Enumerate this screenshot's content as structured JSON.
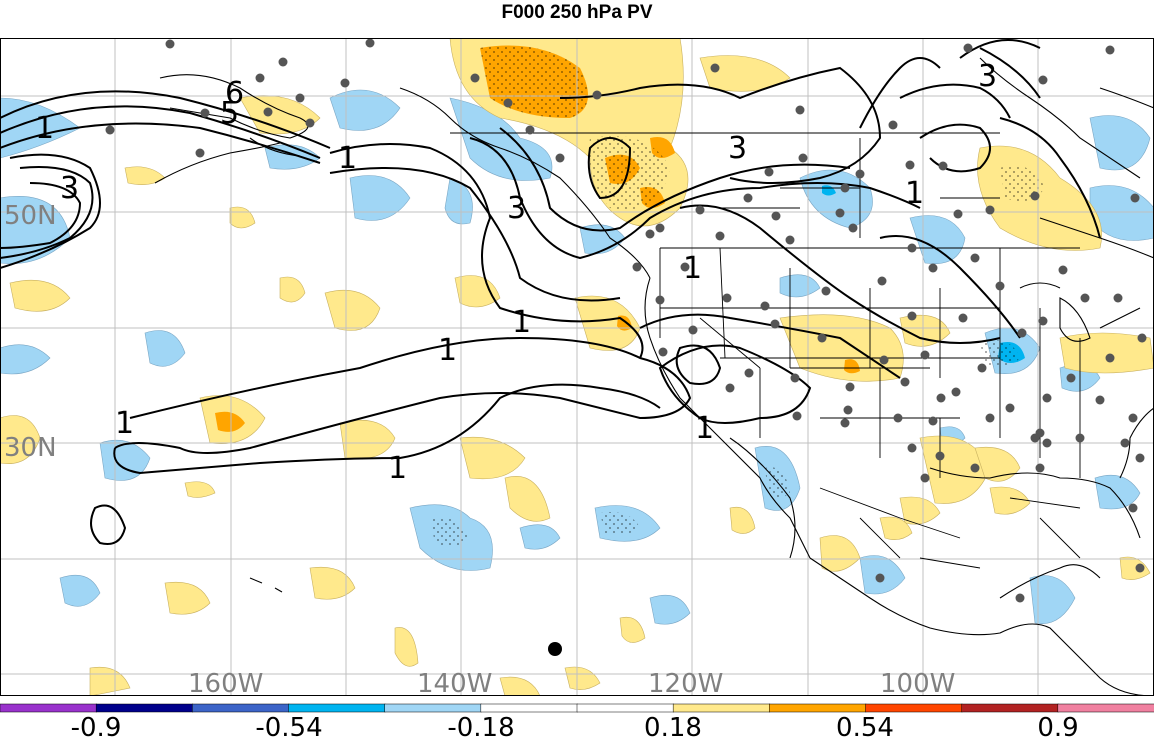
{
  "title": "F000 250 hPa PV",
  "lat_labels": [
    {
      "text": "50N",
      "lat": 50
    },
    {
      "text": "30N",
      "lat": 30
    }
  ],
  "lon_labels": [
    {
      "text": "160W",
      "lon": -160
    },
    {
      "text": "140W",
      "lon": -140
    },
    {
      "text": "120W",
      "lon": -120
    },
    {
      "text": "100W",
      "lon": -100
    }
  ],
  "contour_labels": [
    "6",
    "5",
    "1",
    "3",
    "3",
    "1",
    "3",
    "1",
    "1",
    "1",
    "1",
    "1",
    "1",
    "3"
  ],
  "colorbar": {
    "colors": [
      "#9932cc",
      "#00008b",
      "#3c64c8",
      "#00b4f0",
      "#a0d6f5",
      "#ffffff",
      "#ffffff",
      "#ffe98c",
      "#ffa500",
      "#ff4500",
      "#b22222",
      "#f080a0"
    ],
    "tick_labels": [
      "-0.9",
      "-0.54",
      "-0.18",
      "0.18",
      "0.54",
      "0.9"
    ]
  },
  "colors": {
    "land_outline": "#000000",
    "grid": "#c0c0c0",
    "station": "#555555",
    "contour": "#000000"
  }
}
